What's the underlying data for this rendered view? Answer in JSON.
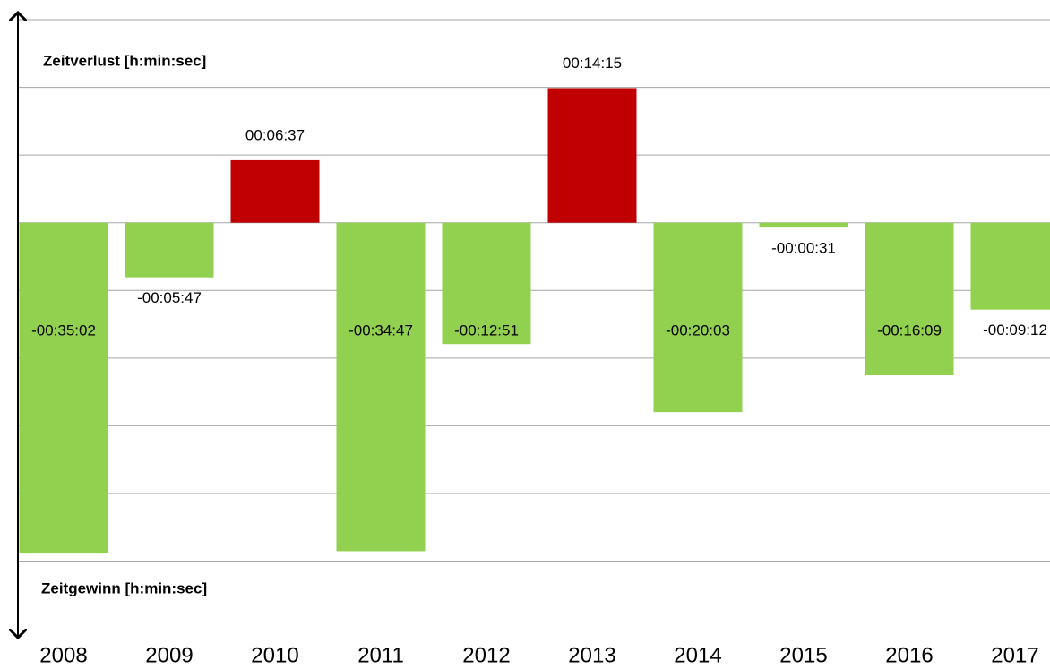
{
  "chart_data": {
    "type": "bar",
    "annotations": [
      "Zeitverlust [h:min:sec]",
      "Zeitgewinn [h:min:sec]"
    ],
    "categories": [
      "2008",
      "2009",
      "2010",
      "2011",
      "2012",
      "2013",
      "2014",
      "2015",
      "2016",
      "2017"
    ],
    "values": [
      -2102,
      -347,
      397,
      -2087,
      -771,
      855,
      -1203,
      -31,
      -969,
      -552
    ],
    "value_labels": [
      "-00:35:02",
      "-00:05:47",
      "00:06:37",
      "-00:34:47",
      "-00:12:51",
      "00:14:15",
      "-00:20:03",
      "-00:00:31",
      "-00:16:09",
      "-00:09:12"
    ],
    "colors": [
      "#92d050",
      "#92d050",
      "#c00000",
      "#92d050",
      "#92d050",
      "#c00000",
      "#92d050",
      "#92d050",
      "#92d050",
      "#92d050"
    ],
    "ylim": [
      -2625,
      1290
    ],
    "yticks": [
      -2150,
      -1720,
      -1290,
      -860,
      -430,
      0,
      430,
      860,
      1290
    ],
    "grid": true
  }
}
